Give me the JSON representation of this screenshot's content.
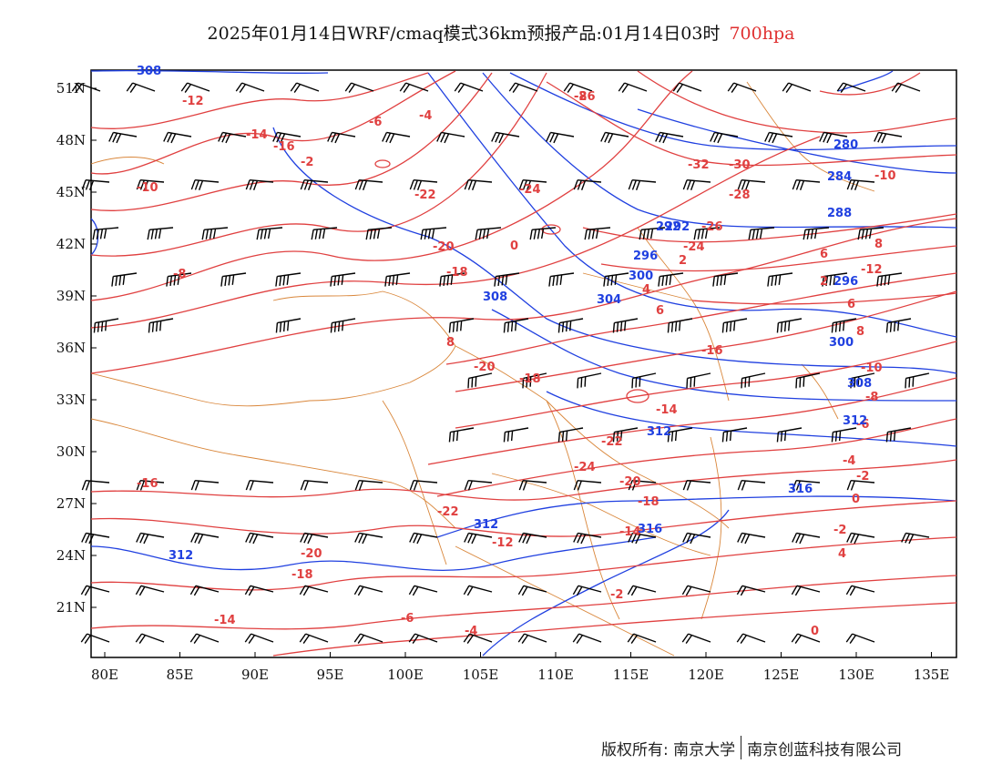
{
  "title": {
    "main": "2025年01月14日WRF/cmaq模式36km预报产品:01月14日03时",
    "level": "700hpa"
  },
  "map": {
    "lon_ticks": [
      "80E",
      "85E",
      "90E",
      "95E",
      "100E",
      "105E",
      "110E",
      "115E",
      "120E",
      "125E",
      "130E",
      "135E"
    ],
    "lat_ticks": [
      "51N",
      "48N",
      "45N",
      "42N",
      "39N",
      "36N",
      "33N",
      "30N",
      "27N",
      "24N",
      "21N"
    ],
    "temperature_labels": [
      "-26",
      "-32",
      "-30",
      "-28",
      "-24",
      "-26",
      "-24",
      "-22",
      "-20",
      "-18",
      "-16",
      "-14",
      "-12",
      "-10",
      "-8",
      "-6",
      "-4",
      "-2",
      "0",
      "2",
      "4",
      "6",
      "8",
      "-20",
      "-18",
      "-16",
      "-14",
      "-22",
      "-24",
      "-20",
      "-18",
      "-14",
      "-12",
      "-22",
      "-20",
      "-18",
      "-16",
      "-14",
      "-6",
      "-4",
      "-2",
      "0",
      "2",
      "6",
      "8",
      "-10",
      "-8",
      "-6",
      "-4",
      "-2",
      "0",
      "-2",
      "4",
      "6",
      "8",
      "-12",
      "-10",
      "-8"
    ],
    "height_labels": [
      "308",
      "280",
      "284",
      "288",
      "292",
      "296",
      "300",
      "304",
      "308",
      "312",
      "316",
      "312",
      "316",
      "312",
      "292",
      "296",
      "300",
      "308",
      "312"
    ],
    "colors": {
      "temperature": "#e04040",
      "height": "#2040e0",
      "border": "#d9863a",
      "wind": "#000000"
    }
  },
  "footer": {
    "copyright": "版权所有: 南京大学",
    "company": "南京创蓝科技有限公司"
  }
}
